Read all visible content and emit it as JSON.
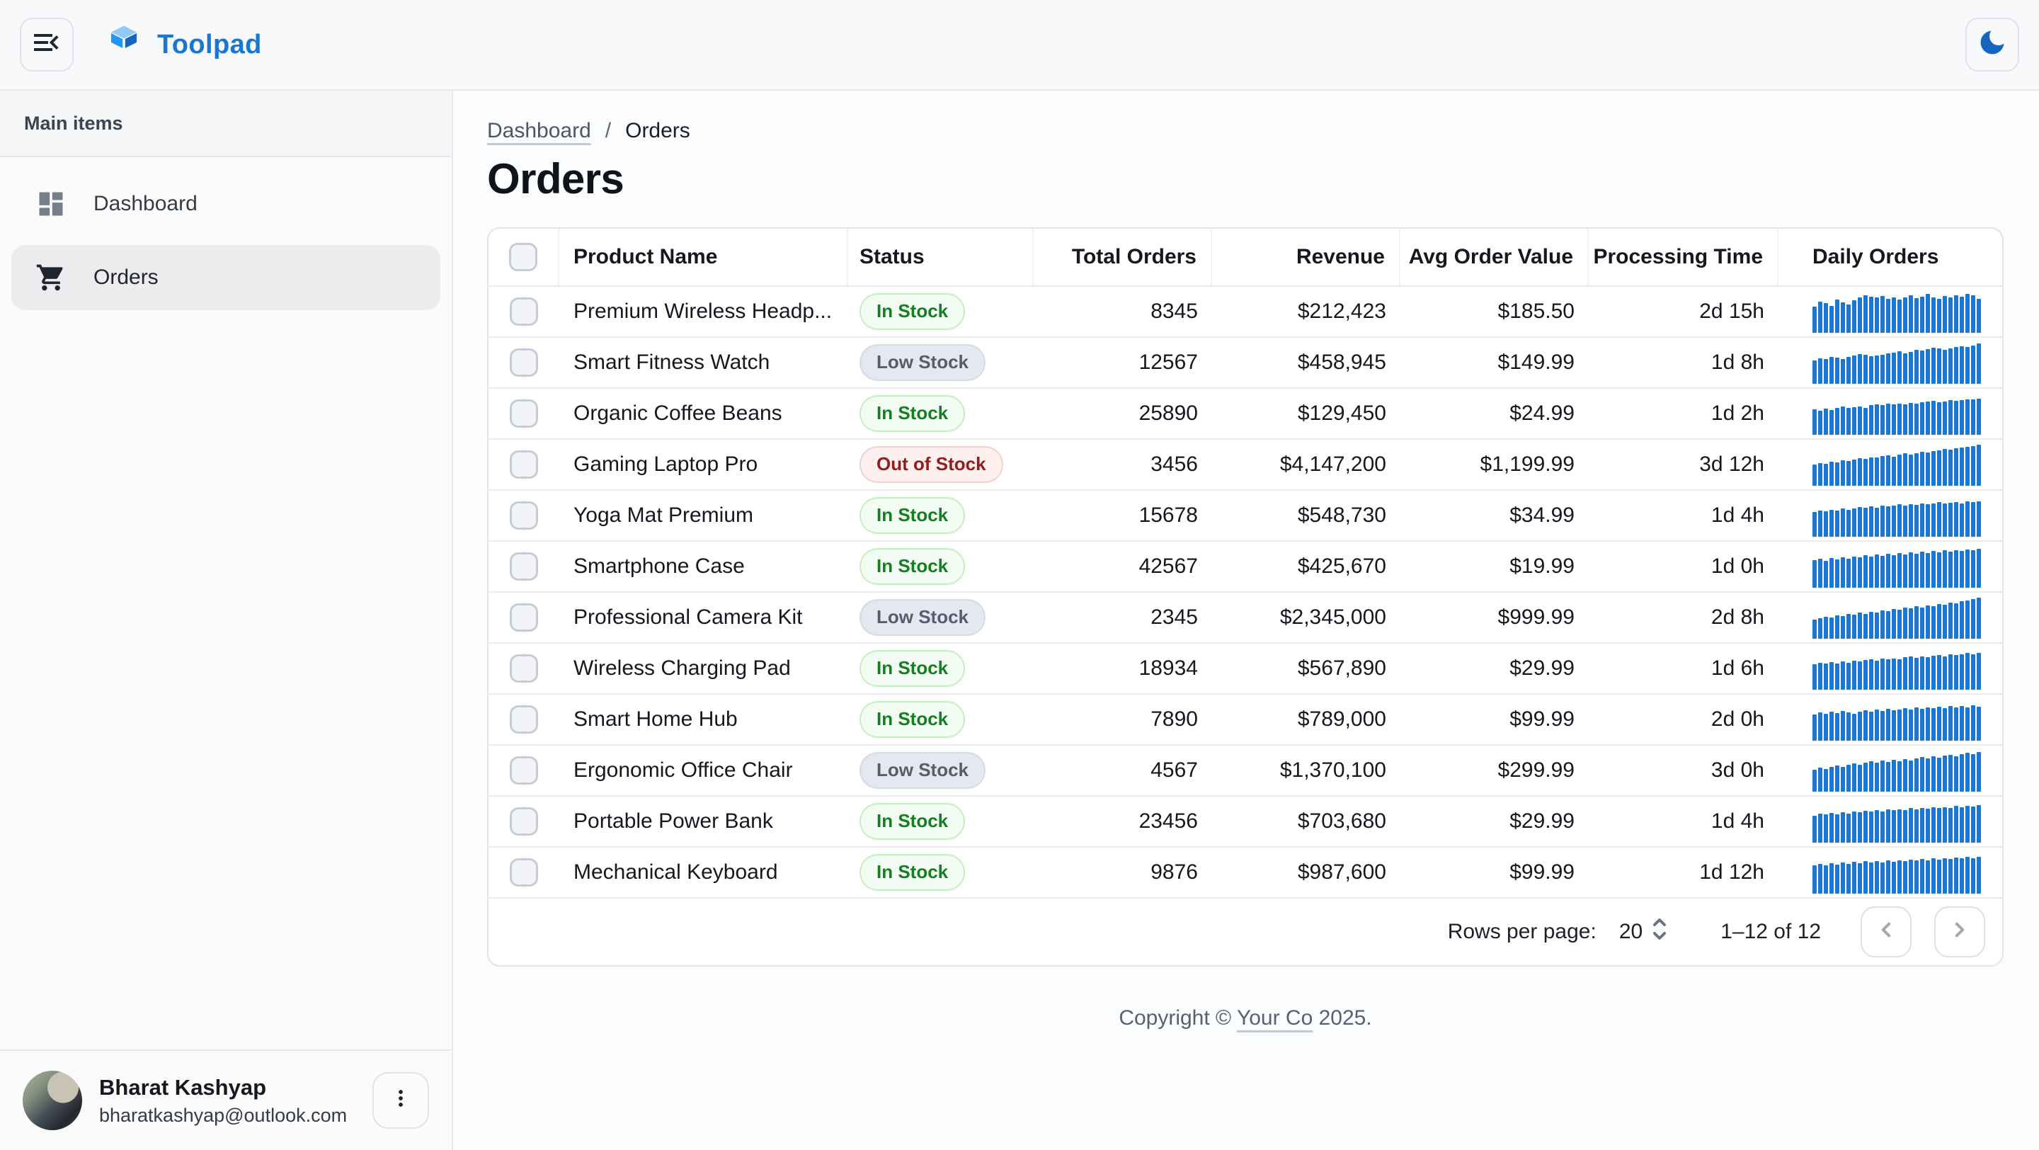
{
  "header": {
    "app_name": "Toolpad"
  },
  "sidebar": {
    "section_label": "Main items",
    "items": [
      {
        "label": "Dashboard",
        "icon": "dashboard-icon",
        "selected": false
      },
      {
        "label": "Orders",
        "icon": "cart-icon",
        "selected": true
      }
    ],
    "user": {
      "name": "Bharat Kashyap",
      "email": "bharatkashyap@outlook.com"
    }
  },
  "breadcrumb": {
    "link": "Dashboard",
    "separator": "/",
    "current": "Orders"
  },
  "page": {
    "title": "Orders"
  },
  "table": {
    "columns": [
      "Product Name",
      "Status",
      "Total Orders",
      "Revenue",
      "Avg Order Value",
      "Processing Time",
      "Daily Orders"
    ],
    "rows": [
      {
        "name": "Premium Wireless Headp...",
        "status": "In Stock",
        "status_type": "in",
        "total_orders": "8345",
        "revenue": "$212,423",
        "avg_order_value": "$185.50",
        "processing_time": "2d 15h",
        "daily_orders": [
          62,
          74,
          70,
          64,
          79,
          72,
          67,
          76,
          84,
          88,
          85,
          83,
          86,
          80,
          84,
          79,
          83,
          88,
          82,
          85,
          91,
          84,
          80,
          86,
          83,
          88,
          85,
          91,
          88,
          80
        ]
      },
      {
        "name": "Smart Fitness Watch",
        "status": "Low Stock",
        "status_type": "low",
        "total_orders": "12567",
        "revenue": "$458,945",
        "avg_order_value": "$149.99",
        "processing_time": "1d 8h",
        "daily_orders": [
          55,
          60,
          58,
          63,
          61,
          59,
          64,
          66,
          70,
          68,
          65,
          67,
          69,
          71,
          74,
          77,
          72,
          75,
          80,
          78,
          82,
          85,
          83,
          80,
          84,
          86,
          88,
          87,
          90,
          95
        ]
      },
      {
        "name": "Organic Coffee Beans",
        "status": "In Stock",
        "status_type": "in",
        "total_orders": "25890",
        "revenue": "$129,450",
        "avg_order_value": "$24.99",
        "processing_time": "1d 2h",
        "daily_orders": [
          60,
          57,
          62,
          59,
          64,
          66,
          63,
          65,
          67,
          64,
          70,
          72,
          70,
          73,
          71,
          74,
          72,
          75,
          73,
          76,
          78,
          80,
          77,
          79,
          81,
          80,
          82,
          84,
          83,
          85
        ]
      },
      {
        "name": "Gaming Laptop Pro",
        "status": "Out of Stock",
        "status_type": "out",
        "total_orders": "3456",
        "revenue": "$4,147,200",
        "avg_order_value": "$1,199.99",
        "processing_time": "3d 12h",
        "daily_orders": [
          50,
          54,
          52,
          57,
          55,
          60,
          58,
          62,
          65,
          63,
          67,
          66,
          70,
          72,
          69,
          74,
          76,
          73,
          77,
          80,
          78,
          82,
          84,
          86,
          85,
          88,
          90,
          92,
          94,
          97
        ]
      },
      {
        "name": "Yoga Mat Premium",
        "status": "In Stock",
        "status_type": "in",
        "total_orders": "15678",
        "revenue": "$548,730",
        "avg_order_value": "$34.99",
        "processing_time": "1d 4h",
        "daily_orders": [
          58,
          62,
          60,
          64,
          61,
          66,
          63,
          67,
          70,
          68,
          72,
          69,
          73,
          71,
          74,
          76,
          73,
          77,
          75,
          78,
          76,
          79,
          81,
          78,
          80,
          82,
          79,
          83,
          81,
          84
        ]
      },
      {
        "name": "Smartphone Case",
        "status": "In Stock",
        "status_type": "in",
        "total_orders": "42567",
        "revenue": "$425,670",
        "avg_order_value": "$19.99",
        "processing_time": "1d 0h",
        "daily_orders": [
          65,
          68,
          64,
          70,
          67,
          72,
          69,
          74,
          71,
          76,
          73,
          78,
          75,
          80,
          77,
          82,
          79,
          83,
          80,
          85,
          82,
          86,
          84,
          88,
          85,
          89,
          87,
          90,
          88,
          91
        ]
      },
      {
        "name": "Professional Camera Kit",
        "status": "Low Stock",
        "status_type": "low",
        "total_orders": "2345",
        "revenue": "$2,345,000",
        "avg_order_value": "$999.99",
        "processing_time": "2d 8h",
        "daily_orders": [
          45,
          48,
          52,
          50,
          55,
          53,
          58,
          56,
          61,
          59,
          64,
          62,
          67,
          65,
          70,
          68,
          73,
          71,
          76,
          74,
          79,
          77,
          82,
          80,
          85,
          83,
          88,
          90,
          93,
          97
        ]
      },
      {
        "name": "Wireless Charging Pad",
        "status": "In Stock",
        "status_type": "in",
        "total_orders": "18934",
        "revenue": "$567,890",
        "avg_order_value": "$29.99",
        "processing_time": "1d 6h",
        "daily_orders": [
          60,
          63,
          61,
          65,
          62,
          67,
          64,
          68,
          66,
          70,
          72,
          69,
          73,
          71,
          74,
          72,
          76,
          78,
          75,
          79,
          77,
          80,
          82,
          79,
          83,
          81,
          84,
          86,
          83,
          87
        ]
      },
      {
        "name": "Smart Home Hub",
        "status": "In Stock",
        "status_type": "in",
        "total_orders": "7890",
        "revenue": "$789,000",
        "avg_order_value": "$99.99",
        "processing_time": "2d 0h",
        "daily_orders": [
          62,
          66,
          63,
          68,
          65,
          70,
          67,
          64,
          69,
          72,
          68,
          73,
          70,
          75,
          71,
          74,
          77,
          73,
          78,
          75,
          79,
          76,
          80,
          77,
          81,
          78,
          82,
          79,
          83,
          80
        ]
      },
      {
        "name": "Ergonomic Office Chair",
        "status": "Low Stock",
        "status_type": "low",
        "total_orders": "4567",
        "revenue": "$1,370,100",
        "avg_order_value": "$299.99",
        "processing_time": "3d 0h",
        "daily_orders": [
          52,
          56,
          54,
          58,
          61,
          59,
          63,
          66,
          64,
          68,
          71,
          69,
          73,
          70,
          75,
          72,
          77,
          74,
          79,
          81,
          78,
          83,
          80,
          85,
          87,
          84,
          89,
          91,
          88,
          93
        ]
      },
      {
        "name": "Portable Power Bank",
        "status": "In Stock",
        "status_type": "in",
        "total_orders": "23456",
        "revenue": "$703,680",
        "avg_order_value": "$29.99",
        "processing_time": "1d 4h",
        "daily_orders": [
          64,
          68,
          66,
          70,
          67,
          72,
          69,
          74,
          71,
          75,
          73,
          77,
          74,
          78,
          76,
          79,
          77,
          81,
          78,
          82,
          80,
          83,
          81,
          84,
          82,
          86,
          83,
          87,
          85,
          88
        ]
      },
      {
        "name": "Mechanical Keyboard",
        "status": "In Stock",
        "status_type": "in",
        "total_orders": "9876",
        "revenue": "$987,600",
        "avg_order_value": "$99.99",
        "processing_time": "1d 12h",
        "daily_orders": [
          66,
          70,
          67,
          72,
          69,
          73,
          70,
          75,
          72,
          76,
          73,
          77,
          74,
          78,
          75,
          79,
          77,
          80,
          78,
          82,
          79,
          83,
          80,
          84,
          81,
          85,
          83,
          86,
          84,
          87
        ]
      }
    ]
  },
  "pagination": {
    "rows_per_page_label": "Rows per page:",
    "rows_per_page": "20",
    "range": "1–12 of 12"
  },
  "footer": {
    "prefix": "Copyright © ",
    "link": "Your Co",
    "suffix": " 2025."
  },
  "colors": {
    "accent": "#1976d2",
    "in_stock": "#177d25",
    "low_stock": "#555e6e",
    "out_of_stock": "#911d1d",
    "sparkline": "#1976d2",
    "theme_icon": "#1565c0"
  }
}
